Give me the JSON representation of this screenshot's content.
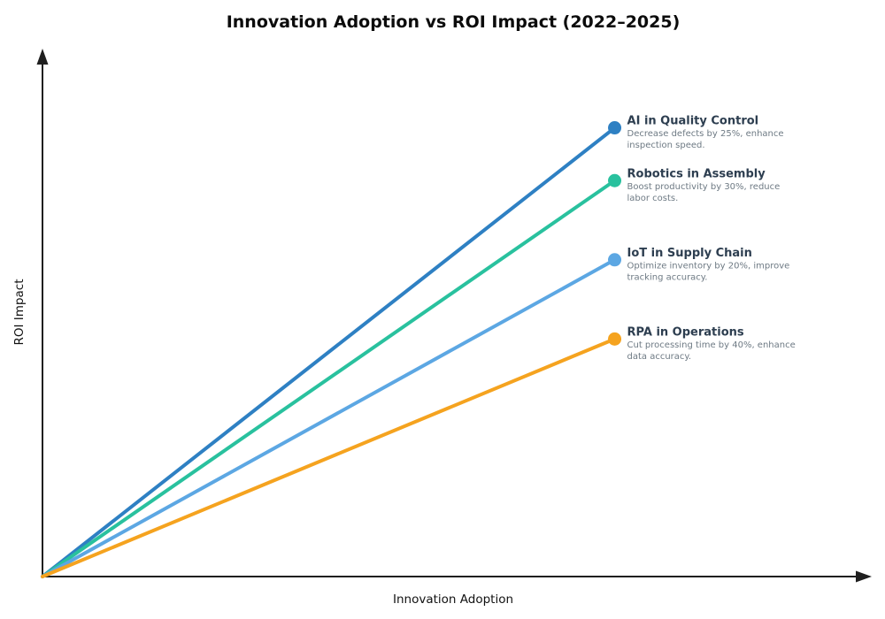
{
  "chart_data": {
    "type": "line",
    "title": "Innovation Adoption vs ROI Impact (2022–2025)",
    "xlabel": "Innovation Adoption",
    "ylabel": "ROI Impact",
    "xlim": [
      0,
      100
    ],
    "ylim": [
      0,
      100
    ],
    "grid": false,
    "legend_position": "inline-right-annotations",
    "axis_style": "arrow axes from origin, no tick marks or tick labels",
    "series": [
      {
        "name": "AI in Quality Control",
        "desc_lines": [
          "Decrease defects by 25%, enhance",
          "inspection speed."
        ],
        "color": "#2e80c3",
        "x": [
          0,
          69
        ],
        "y": [
          0,
          85
        ]
      },
      {
        "name": "Robotics in Assembly",
        "desc_lines": [
          "Boost productivity by 30%, reduce",
          "labor costs."
        ],
        "color": "#29c19e",
        "x": [
          0,
          69
        ],
        "y": [
          0,
          75
        ]
      },
      {
        "name": "IoT in Supply Chain",
        "desc_lines": [
          "Optimize inventory by 20%, improve",
          "tracking accuracy."
        ],
        "color": "#5ca7e3",
        "x": [
          0,
          69
        ],
        "y": [
          0,
          60
        ]
      },
      {
        "name": "RPA in Operations",
        "desc_lines": [
          "Cut processing time by 40%, enhance",
          "data accuracy."
        ],
        "color": "#f5a31f",
        "x": [
          0,
          69
        ],
        "y": [
          0,
          45
        ]
      }
    ],
    "colors": {
      "title_text": "#0b0b0b",
      "axis": "#1f1f1f",
      "series_name_text": "#2d3e50",
      "series_desc_text": "#6e7a84",
      "background": "#ffffff"
    }
  }
}
